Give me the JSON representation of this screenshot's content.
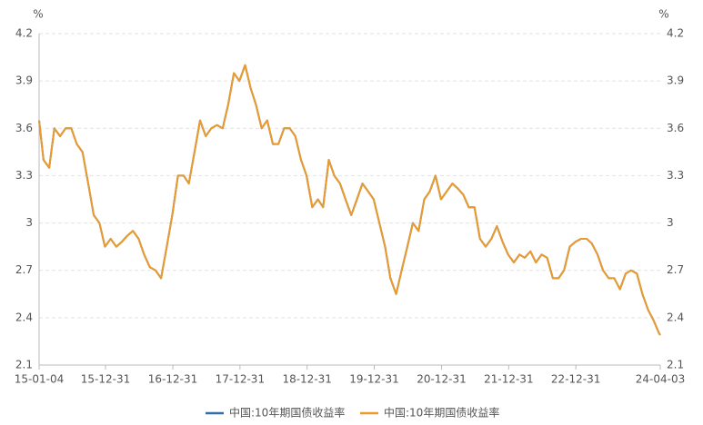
{
  "chart_data": {
    "type": "line",
    "y_unit": "%",
    "y2_unit": "%",
    "x": [
      "15-01-04",
      "15-01-28",
      "15-02-28",
      "15-03-28",
      "15-04-28",
      "15-05-28",
      "15-06-28",
      "15-07-28",
      "15-08-28",
      "15-09-28",
      "15-10-28",
      "15-11-28",
      "15-12-28",
      "16-01-28",
      "16-02-28",
      "16-03-28",
      "16-04-28",
      "16-05-28",
      "16-06-28",
      "16-07-28",
      "16-08-28",
      "16-09-28",
      "16-10-28",
      "16-11-28",
      "16-12-28",
      "17-01-28",
      "17-02-28",
      "17-03-28",
      "17-04-28",
      "17-05-28",
      "17-06-28",
      "17-07-28",
      "17-08-28",
      "17-09-28",
      "17-10-28",
      "17-11-28",
      "17-12-28",
      "18-01-28",
      "18-02-28",
      "18-03-28",
      "18-04-28",
      "18-05-28",
      "18-06-28",
      "18-07-28",
      "18-08-28",
      "18-09-28",
      "18-10-28",
      "18-11-28",
      "18-12-28",
      "19-01-28",
      "19-02-28",
      "19-03-28",
      "19-04-28",
      "19-05-28",
      "19-06-28",
      "19-07-28",
      "19-08-28",
      "19-09-28",
      "19-10-28",
      "19-11-28",
      "19-12-28",
      "20-01-28",
      "20-02-28",
      "20-03-28",
      "20-04-28",
      "20-05-28",
      "20-06-28",
      "20-07-28",
      "20-08-28",
      "20-09-28",
      "20-10-28",
      "20-11-28",
      "20-12-28",
      "21-01-28",
      "21-02-28",
      "21-03-28",
      "21-04-28",
      "21-05-28",
      "21-06-28",
      "21-07-28",
      "21-08-28",
      "21-09-28",
      "21-10-28",
      "21-11-28",
      "21-12-28",
      "22-01-28",
      "22-02-28",
      "22-03-28",
      "22-04-28",
      "22-05-28",
      "22-06-28",
      "22-07-28",
      "22-08-28",
      "22-09-28",
      "22-10-28",
      "22-11-28",
      "22-12-28",
      "23-01-28",
      "23-02-28",
      "23-03-28",
      "23-04-28",
      "23-05-28",
      "23-06-28",
      "23-07-28",
      "23-08-28",
      "23-09-28",
      "23-10-28",
      "23-11-28",
      "23-12-28",
      "24-01-28",
      "24-02-28",
      "24-03-28",
      "24-04-03"
    ],
    "series": [
      {
        "name": "中国:10年期国债收益率",
        "color": "#2f6ea8",
        "axis": "y",
        "values": [
          3.65,
          3.4,
          3.35,
          3.6,
          3.55,
          3.6,
          3.6,
          3.5,
          3.45,
          3.25,
          3.05,
          3.0,
          2.85,
          2.9,
          2.85,
          2.88,
          2.92,
          2.95,
          2.9,
          2.8,
          2.72,
          2.7,
          2.65,
          2.85,
          3.05,
          3.3,
          3.3,
          3.25,
          3.45,
          3.65,
          3.55,
          3.6,
          3.62,
          3.6,
          3.75,
          3.95,
          3.9,
          4.0,
          3.85,
          3.75,
          3.6,
          3.65,
          3.5,
          3.5,
          3.6,
          3.6,
          3.55,
          3.4,
          3.3,
          3.1,
          3.15,
          3.1,
          3.4,
          3.3,
          3.25,
          3.15,
          3.05,
          3.15,
          3.25,
          3.2,
          3.15,
          3.0,
          2.85,
          2.65,
          2.55,
          2.7,
          2.85,
          3.0,
          2.95,
          3.15,
          3.2,
          3.3,
          3.15,
          3.2,
          3.25,
          3.22,
          3.18,
          3.1,
          3.1,
          2.9,
          2.85,
          2.9,
          2.98,
          2.88,
          2.8,
          2.75,
          2.8,
          2.78,
          2.82,
          2.75,
          2.8,
          2.78,
          2.65,
          2.65,
          2.7,
          2.85,
          2.88,
          2.9,
          2.9,
          2.87,
          2.8,
          2.7,
          2.65,
          2.65,
          2.58,
          2.68,
          2.7,
          2.68,
          2.55,
          2.45,
          2.38,
          2.3,
          2.29
        ]
      },
      {
        "name": "中国:10年期国债收益率",
        "color": "#ec9a2b",
        "axis": "y2",
        "values": [
          3.65,
          3.4,
          3.35,
          3.6,
          3.55,
          3.6,
          3.6,
          3.5,
          3.45,
          3.25,
          3.05,
          3.0,
          2.85,
          2.9,
          2.85,
          2.88,
          2.92,
          2.95,
          2.9,
          2.8,
          2.72,
          2.7,
          2.65,
          2.85,
          3.05,
          3.3,
          3.3,
          3.25,
          3.45,
          3.65,
          3.55,
          3.6,
          3.62,
          3.6,
          3.75,
          3.95,
          3.9,
          4.0,
          3.85,
          3.75,
          3.6,
          3.65,
          3.5,
          3.5,
          3.6,
          3.6,
          3.55,
          3.4,
          3.3,
          3.1,
          3.15,
          3.1,
          3.4,
          3.3,
          3.25,
          3.15,
          3.05,
          3.15,
          3.25,
          3.2,
          3.15,
          3.0,
          2.85,
          2.65,
          2.55,
          2.7,
          2.85,
          3.0,
          2.95,
          3.15,
          3.2,
          3.3,
          3.15,
          3.2,
          3.25,
          3.22,
          3.18,
          3.1,
          3.1,
          2.9,
          2.85,
          2.9,
          2.98,
          2.88,
          2.8,
          2.75,
          2.8,
          2.78,
          2.82,
          2.75,
          2.8,
          2.78,
          2.65,
          2.65,
          2.7,
          2.85,
          2.88,
          2.9,
          2.9,
          2.87,
          2.8,
          2.7,
          2.65,
          2.65,
          2.58,
          2.68,
          2.7,
          2.68,
          2.55,
          2.45,
          2.38,
          2.3,
          2.29
        ]
      }
    ],
    "xlim": [
      "15-01-04",
      "24-04-03"
    ],
    "xticks": [
      "15-01-04",
      "15-12-31",
      "16-12-31",
      "17-12-31",
      "18-12-31",
      "19-12-31",
      "20-12-31",
      "21-12-31",
      "22-12-31",
      "24-04-03"
    ],
    "ylim": [
      2.1,
      4.2
    ],
    "yticks": [
      4.2,
      3.9,
      3.6,
      3.3,
      3,
      2.7,
      2.4,
      2.1
    ],
    "y2lim": [
      2.1,
      4.2
    ],
    "y2ticks": [
      4.2,
      3.9,
      3.6,
      3.3,
      3,
      2.7,
      2.4,
      2.1
    ],
    "grid": true,
    "legend": "bottom"
  }
}
